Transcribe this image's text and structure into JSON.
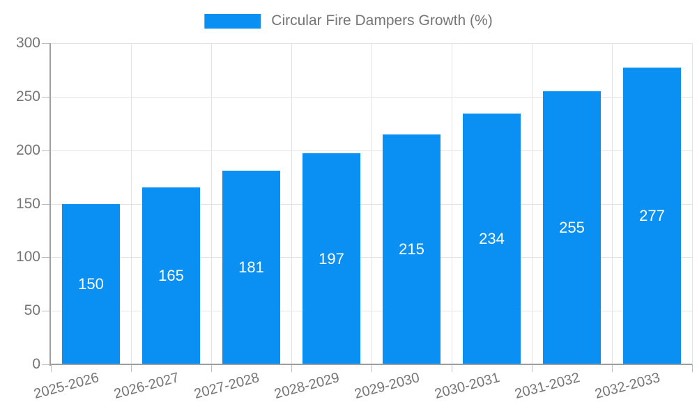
{
  "legend": {
    "label": "Circular Fire Dampers Growth (%)",
    "swatch_color": "#0A8FF2",
    "position": "top"
  },
  "chart_data": {
    "type": "bar",
    "title": "Circular Fire Dampers Growth (%)",
    "categories": [
      "2025-2026",
      "2026-2027",
      "2027-2028",
      "2028-2029",
      "2029-2030",
      "2030-2031",
      "2031-2032",
      "2032-2033"
    ],
    "values": [
      150,
      165,
      181,
      197,
      215,
      234,
      255,
      277
    ],
    "series": [
      {
        "name": "Circular Fire Dampers Growth (%)",
        "values": [
          150,
          165,
          181,
          197,
          215,
          234,
          255,
          277
        ]
      }
    ],
    "xlabel": "",
    "ylabel": "",
    "ylim": [
      0,
      300
    ],
    "yticks": [
      0,
      50,
      100,
      150,
      200,
      250,
      300
    ],
    "grid": true,
    "legend_position": "top",
    "value_label_placement": "inside-center",
    "x_label_rotation_deg": -15,
    "colors": {
      "bar": "#0A8FF2",
      "value_label": "#FFFFFF",
      "axis_text": "#757575",
      "axis_line": "#9E9E9E",
      "gridline": "#E3E3E3",
      "tick": "#BDBDBD",
      "background": "#FFFFFF"
    }
  }
}
